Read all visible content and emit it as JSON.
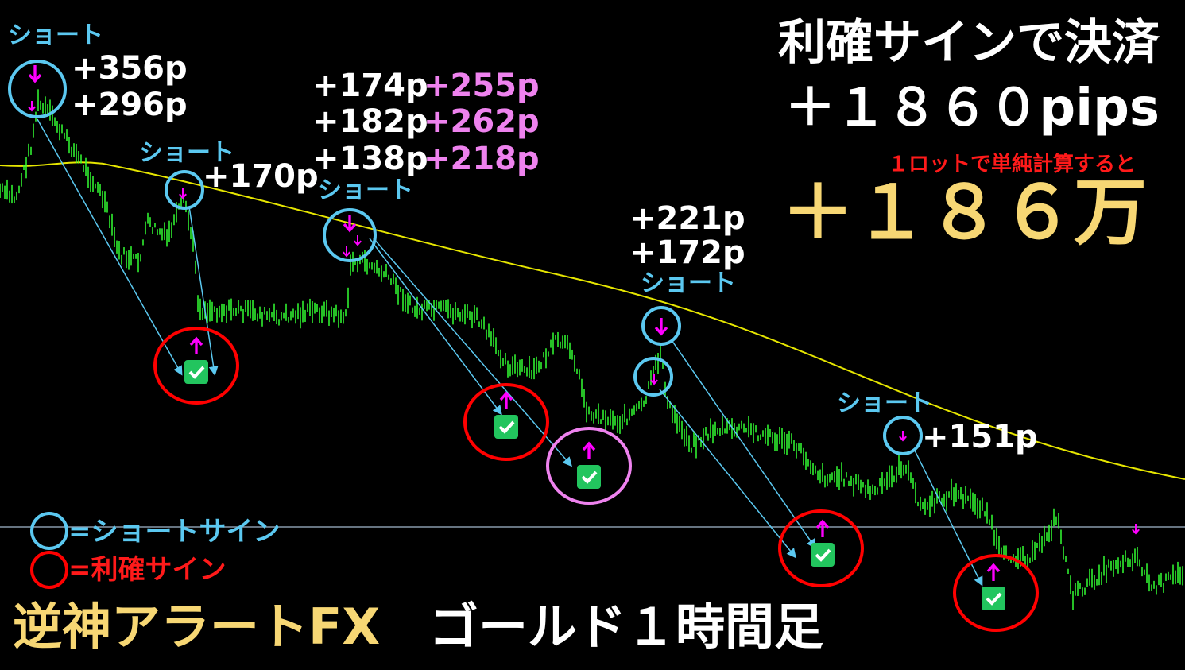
{
  "headline": {
    "title": "利確サインで決済",
    "total_pips": "＋１８６０pips",
    "lot_note": "１ロットで単純計算すると",
    "total_yen": "＋１８６万"
  },
  "footer": {
    "brand": "逆神アラートFX",
    "subtitle": "ゴールド１時間足"
  },
  "legend": {
    "short_label": "=ショートサイン",
    "profit_label": "=利確サイン"
  },
  "colors": {
    "background": "#000000",
    "candles": "#33ff33",
    "moving_average": "#e6e600",
    "short_circle": "#5bc8f0",
    "profit_circle": "#ff0000",
    "alt_profit_circle": "#ee82ee",
    "arrow": "#ff00ff",
    "check": "#22c55e",
    "title_yellow": "#f7d774"
  },
  "chart_data": {
    "type": "candlestick",
    "title": "",
    "grid": false,
    "annotations": {
      "short_label": "ショート",
      "groups": [
        {
          "short": "ショート",
          "pips": [
            "+356p",
            "+296p"
          ]
        },
        {
          "short": "ショート",
          "pips": [
            "+170p"
          ]
        },
        {
          "short": "ショート",
          "pips": [
            "+174p",
            "+182p",
            "+138p"
          ],
          "alt_pips": [
            "+255p",
            "+262p",
            "+218p"
          ]
        },
        {
          "short": "ショート",
          "pips": [
            "+221p",
            "+172p"
          ]
        },
        {
          "short": "ショート",
          "pips": [
            "+151p"
          ]
        }
      ]
    },
    "signals": {
      "short_count": 6,
      "profit_count": 5
    }
  }
}
